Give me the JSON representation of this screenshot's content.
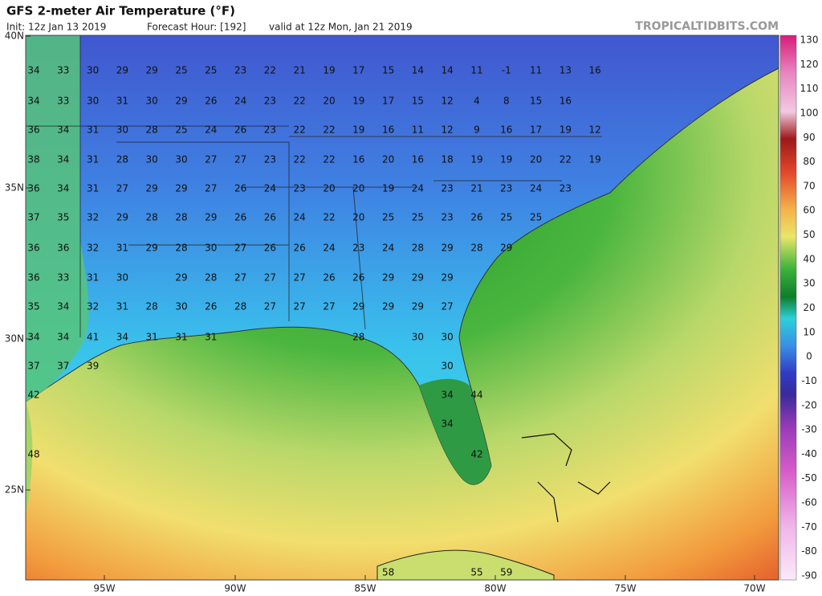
{
  "header": {
    "title": "GFS 2-meter Air Temperature (°F)",
    "init": "Init: 12z Jan 13 2019",
    "forecast_hour": "Forecast Hour: [192]",
    "valid": "valid at 12z Mon, Jan 21 2019",
    "site": "TROPICALTIDBITS.COM"
  },
  "axes": {
    "lat": [
      "40N",
      "35N",
      "30N",
      "25N"
    ],
    "lon": [
      "95W",
      "90W",
      "85W",
      "80W",
      "75W",
      "70W"
    ]
  },
  "colorbar": {
    "labels": [
      130,
      120,
      110,
      100,
      90,
      80,
      70,
      60,
      50,
      40,
      30,
      20,
      10,
      0,
      -10,
      -20,
      -30,
      -40,
      -50,
      -60,
      -70,
      -80,
      -90
    ]
  },
  "temperatures": {
    "rows": [
      [
        34,
        33,
        30,
        29,
        29,
        25,
        25,
        23,
        22,
        21,
        19,
        17,
        15,
        14,
        14,
        11,
        -1,
        11,
        13,
        16
      ],
      [
        34,
        33,
        30,
        31,
        30,
        29,
        26,
        24,
        23,
        22,
        20,
        19,
        17,
        15,
        12,
        4,
        8,
        15,
        16
      ],
      [
        36,
        34,
        31,
        30,
        28,
        25,
        24,
        26,
        23,
        22,
        22,
        19,
        16,
        11,
        12,
        9,
        16,
        17,
        19,
        12
      ],
      [
        38,
        34,
        31,
        28,
        30,
        30,
        27,
        27,
        23,
        22,
        22,
        16,
        20,
        16,
        18,
        19,
        19,
        20,
        22,
        19
      ],
      [
        36,
        34,
        31,
        27,
        29,
        29,
        27,
        26,
        24,
        23,
        20,
        20,
        19,
        24,
        23,
        21,
        23,
        24,
        23
      ],
      [
        37,
        35,
        32,
        29,
        28,
        28,
        29,
        26,
        26,
        24,
        22,
        20,
        25,
        25,
        23,
        26,
        25,
        25
      ],
      [
        36,
        36,
        32,
        31,
        29,
        28,
        30,
        27,
        26,
        26,
        24,
        23,
        24,
        28,
        29,
        28,
        29
      ],
      [
        36,
        33,
        31,
        30,
        null,
        29,
        28,
        27,
        27,
        27,
        26,
        26,
        29,
        29,
        29
      ],
      [
        35,
        34,
        32,
        31,
        28,
        30,
        26,
        28,
        27,
        27,
        27,
        29,
        29,
        29,
        27
      ],
      [
        34,
        34,
        41,
        34,
        31,
        31,
        31,
        null,
        null,
        null,
        null,
        28,
        null,
        30,
        30
      ],
      [
        37,
        37,
        39,
        null,
        null,
        null,
        null,
        null,
        null,
        null,
        null,
        null,
        null,
        null,
        30
      ],
      [
        42,
        null,
        null,
        null,
        null,
        null,
        null,
        null,
        null,
        null,
        null,
        null,
        null,
        null,
        34,
        44
      ],
      [
        null,
        null,
        null,
        null,
        null,
        null,
        null,
        null,
        null,
        null,
        null,
        null,
        null,
        null,
        34
      ],
      [
        48,
        null,
        null,
        null,
        null,
        null,
        null,
        null,
        null,
        null,
        null,
        null,
        null,
        null,
        null,
        42
      ],
      [
        null,
        null,
        null,
        null,
        null,
        null,
        null,
        null,
        null,
        null,
        null,
        null,
        58,
        null,
        null,
        55,
        59
      ]
    ]
  }
}
